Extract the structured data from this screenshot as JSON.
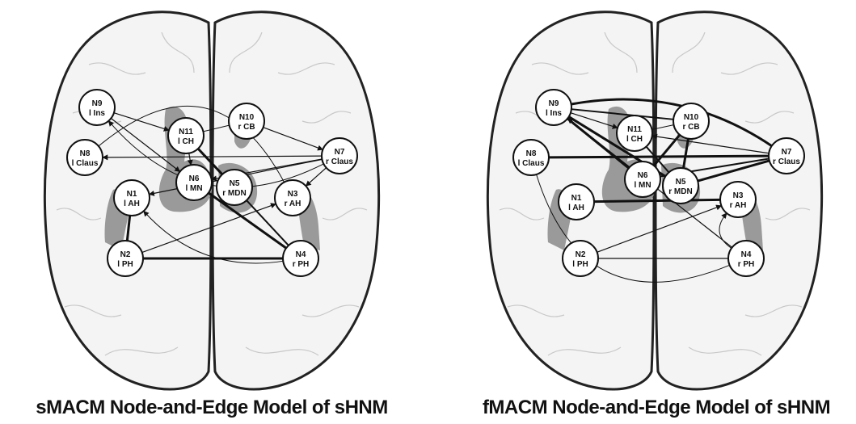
{
  "panels": [
    {
      "title": "sMACM Node-and-Edge Model of sHNM",
      "nodes": [
        {
          "id": "N1",
          "region": "l AH"
        },
        {
          "id": "N2",
          "region": "l PH"
        },
        {
          "id": "N3",
          "region": "r AH"
        },
        {
          "id": "N4",
          "region": "r PH"
        },
        {
          "id": "N5",
          "region": "r MDN"
        },
        {
          "id": "N6",
          "region": "l MN"
        },
        {
          "id": "N7",
          "region": "r Claus"
        },
        {
          "id": "N8",
          "region": "l Claus"
        },
        {
          "id": "N9",
          "region": "l Ins"
        },
        {
          "id": "N10",
          "region": "r CB"
        },
        {
          "id": "N11",
          "region": "l CH"
        }
      ]
    },
    {
      "title": "fMACM Node-and-Edge Model of sHNM",
      "nodes": [
        {
          "id": "N1",
          "region": "l AH"
        },
        {
          "id": "N2",
          "region": "l PH"
        },
        {
          "id": "N3",
          "region": "r AH"
        },
        {
          "id": "N4",
          "region": "r PH"
        },
        {
          "id": "N5",
          "region": "r MDN"
        },
        {
          "id": "N6",
          "region": "l MN"
        },
        {
          "id": "N7",
          "region": "r Claus"
        },
        {
          "id": "N8",
          "region": "l Claus"
        },
        {
          "id": "N9",
          "region": "l Ins"
        },
        {
          "id": "N10",
          "region": "r CB"
        },
        {
          "id": "N11",
          "region": "l CH"
        }
      ]
    }
  ]
}
